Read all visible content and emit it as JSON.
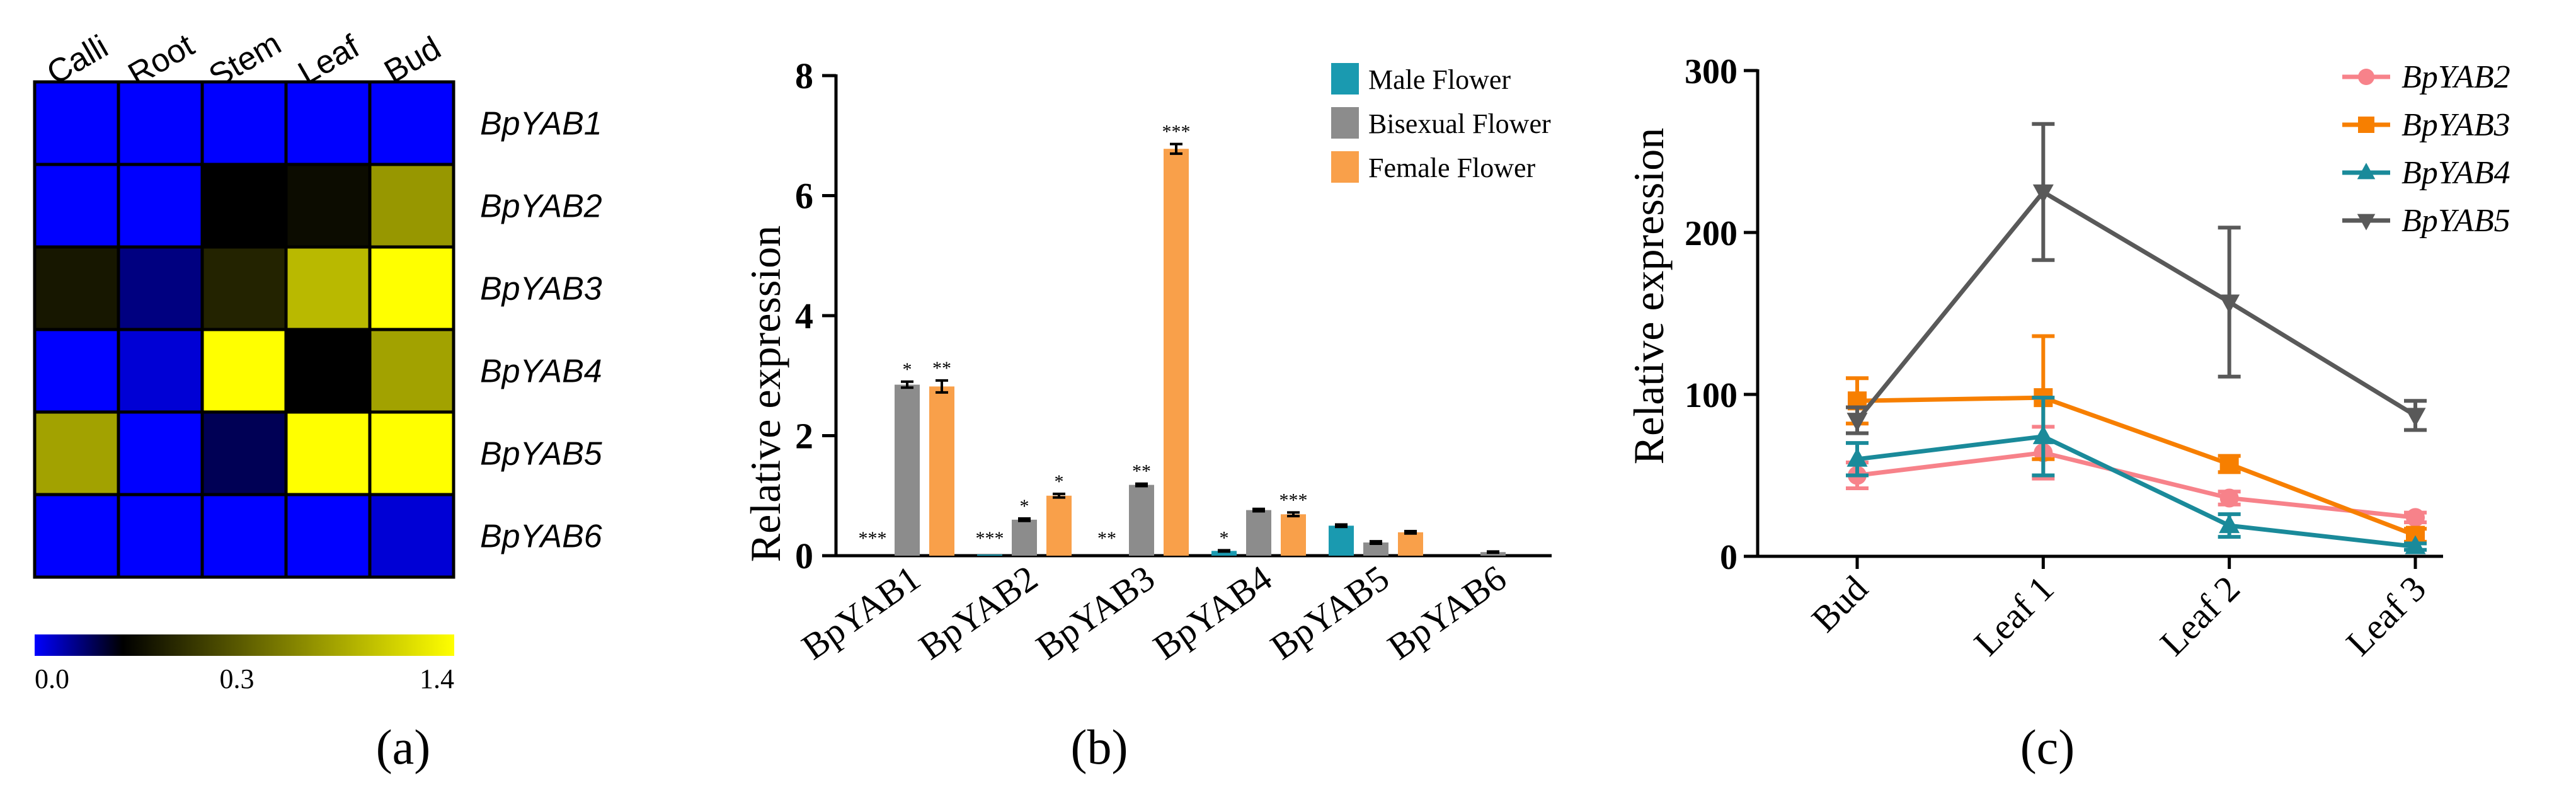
{
  "chart_data": [
    {
      "type": "heatmap",
      "panel_label": "(a)",
      "columns": [
        "Calli",
        "Root",
        "Stem",
        "Leaf",
        "Bud"
      ],
      "rows": [
        "BpYAB1",
        "BpYAB2",
        "BpYAB3",
        "BpYAB4",
        "BpYAB5",
        "BpYAB6"
      ],
      "values": [
        [
          0.0,
          0.0,
          0.0,
          0.0,
          0.0
        ],
        [
          0.0,
          0.0,
          0.3,
          0.35,
          0.95
        ],
        [
          0.4,
          0.15,
          0.45,
          1.1,
          1.4
        ],
        [
          0.0,
          0.05,
          1.4,
          0.3,
          1.0
        ],
        [
          1.0,
          0.0,
          0.2,
          1.4,
          1.4
        ],
        [
          0.0,
          0.0,
          0.0,
          0.0,
          0.05
        ]
      ],
      "colorbar": {
        "min": 0.0,
        "mid": 0.3,
        "max": 1.4,
        "tick_labels": [
          "0.0",
          "0.3",
          "1.4"
        ],
        "colors": [
          "#0000ff",
          "#000000",
          "#ffff00"
        ]
      }
    },
    {
      "type": "bar",
      "panel_label": "(b)",
      "ylabel": "Relative expression",
      "xlabel": "",
      "ylim": [
        0,
        8
      ],
      "yticks": [
        "0",
        "2",
        "4",
        "6",
        "8"
      ],
      "ytick_values": [
        0,
        2,
        4,
        6,
        8
      ],
      "categories": [
        "BpYAB1",
        "BpYAB2",
        "BpYAB3",
        "BpYAB4",
        "BpYAB5",
        "BpYAB6"
      ],
      "series": [
        {
          "name": "Male Flower",
          "color": "#1a9ab0",
          "values": [
            0.0,
            0.02,
            0.0,
            0.08,
            0.5,
            0.0
          ],
          "errors": [
            0,
            0,
            0,
            0.01,
            0.02,
            0
          ],
          "sig": [
            "***",
            "***",
            "**",
            "*",
            "",
            ""
          ]
        },
        {
          "name": "Bisexual Flower",
          "color": "#8c8c8c",
          "values": [
            2.85,
            0.6,
            1.18,
            0.76,
            0.22,
            0.06
          ],
          "errors": [
            0.05,
            0.02,
            0.02,
            0.02,
            0.02,
            0.01
          ],
          "sig": [
            "*",
            "*",
            "**",
            "",
            "",
            ""
          ]
        },
        {
          "name": "Female Flower",
          "color": "#f9a04a",
          "values": [
            2.82,
            1.0,
            6.78,
            0.69,
            0.39,
            0.0
          ],
          "errors": [
            0.1,
            0.03,
            0.08,
            0.03,
            0.02,
            0
          ],
          "sig": [
            "**",
            "*",
            "***",
            "***",
            "",
            ""
          ]
        }
      ]
    },
    {
      "type": "line",
      "panel_label": "(c)",
      "ylabel": "Relative expression",
      "xlabel": "",
      "ylim": [
        0,
        300
      ],
      "yticks": [
        "0",
        "100",
        "200",
        "300"
      ],
      "ytick_values": [
        0,
        100,
        200,
        300
      ],
      "categories": [
        "Bud",
        "Leaf 1",
        "Leaf 2",
        "Leaf 3"
      ],
      "series": [
        {
          "name": "BpYAB2",
          "color": "#f7828a",
          "marker": "circle",
          "values": [
            50,
            64,
            36,
            24
          ],
          "errors": [
            8,
            16,
            4,
            3
          ]
        },
        {
          "name": "BpYAB3",
          "color": "#f77f00",
          "marker": "square",
          "values": [
            96,
            98,
            57,
            13
          ],
          "errors": [
            14,
            38,
            5,
            4
          ]
        },
        {
          "name": "BpYAB4",
          "color": "#1a8a9a",
          "marker": "triangle-up",
          "values": [
            60,
            74,
            19,
            6
          ],
          "errors": [
            10,
            24,
            7,
            2
          ]
        },
        {
          "name": "BpYAB5",
          "color": "#595959",
          "marker": "triangle-down",
          "values": [
            84,
            225,
            157,
            87
          ],
          "errors": [
            8,
            42,
            46,
            9
          ]
        }
      ]
    }
  ]
}
